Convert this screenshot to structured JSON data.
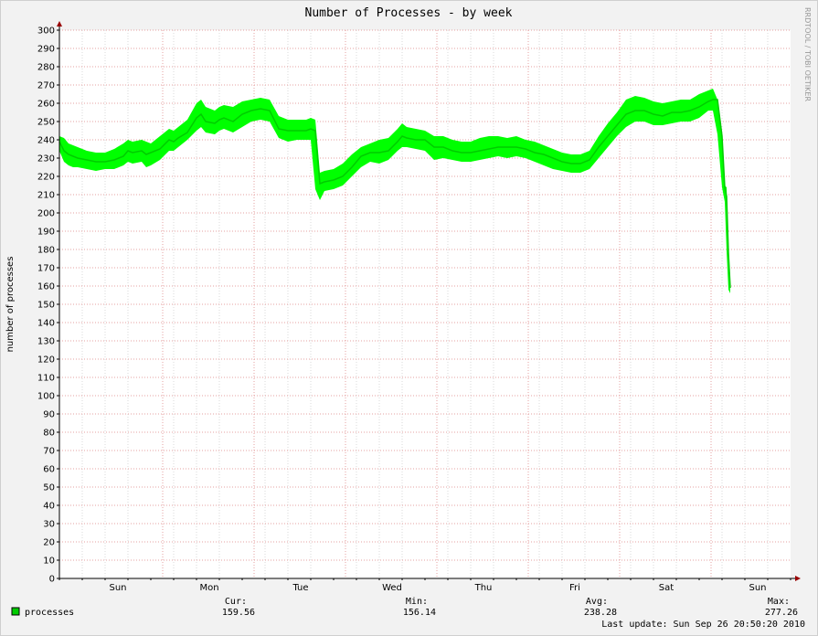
{
  "chart_data": {
    "type": "area",
    "title": "Number of Processes - by week",
    "ylabel": "number of processes",
    "watermark": "RRDTOOL / TOBI OETIKER",
    "ylim": [
      0,
      300
    ],
    "yticks": [
      0,
      10,
      20,
      30,
      40,
      50,
      60,
      70,
      80,
      90,
      100,
      110,
      120,
      130,
      140,
      150,
      160,
      170,
      180,
      190,
      200,
      210,
      220,
      230,
      240,
      250,
      260,
      270,
      280,
      290,
      300
    ],
    "ytick_labels": [
      "0",
      "10",
      "20",
      "30",
      "40",
      "50",
      "60",
      "70",
      "80",
      "90",
      "100",
      "110",
      "120",
      "130",
      "140",
      "150",
      "160",
      "170",
      "180",
      "190",
      "200",
      "210",
      "220",
      "230",
      "240",
      "250",
      "260",
      "270",
      "280",
      "290",
      "300"
    ],
    "day_labels": [
      "Sun",
      "Mon",
      "Tue",
      "Wed",
      "Thu",
      "Fri",
      "Sat",
      "Sun"
    ],
    "grid": true,
    "series": [
      {
        "name": "processes",
        "color": "#00cc00",
        "band_color": "#00ff00",
        "x": [
          0,
          0.05,
          0.1,
          0.15,
          0.2,
          0.3,
          0.4,
          0.5,
          0.6,
          0.7,
          0.75,
          0.8,
          0.9,
          0.95,
          1.0,
          1.1,
          1.2,
          1.25,
          1.3,
          1.4,
          1.5,
          1.55,
          1.6,
          1.7,
          1.75,
          1.8,
          1.9,
          2.0,
          2.1,
          2.2,
          2.3,
          2.4,
          2.5,
          2.6,
          2.7,
          2.75,
          2.8,
          2.85,
          2.9,
          3.0,
          3.1,
          3.2,
          3.3,
          3.4,
          3.5,
          3.6,
          3.7,
          3.75,
          3.8,
          3.9,
          4.0,
          4.1,
          4.2,
          4.3,
          4.4,
          4.5,
          4.6,
          4.7,
          4.8,
          4.9,
          5.0,
          5.1,
          5.2,
          5.3,
          5.4,
          5.5,
          5.6,
          5.7,
          5.8,
          5.9,
          6.0,
          6.1,
          6.2,
          6.3,
          6.4,
          6.5,
          6.6,
          6.7,
          6.8,
          6.9,
          7.0,
          7.1,
          7.15,
          7.2,
          7.25,
          7.28,
          7.3,
          7.32,
          7.34
        ],
        "values": [
          239,
          234,
          232,
          231,
          230,
          229,
          228,
          228,
          229,
          231,
          234,
          233,
          234,
          232,
          233,
          235,
          240,
          239,
          241,
          244,
          252,
          254,
          250,
          249,
          251,
          252,
          250,
          254,
          256,
          257,
          256,
          246,
          245,
          245,
          245,
          246,
          245,
          216,
          217,
          218,
          220,
          225,
          231,
          233,
          233,
          234,
          239,
          242,
          241,
          240,
          240,
          236,
          236,
          234,
          233,
          233,
          234,
          235,
          236,
          236,
          236,
          235,
          233,
          232,
          230,
          228,
          227,
          227,
          229,
          236,
          242,
          248,
          254,
          256,
          256,
          254,
          253,
          255,
          255,
          256,
          258,
          261,
          262,
          262,
          242,
          214,
          209,
          178,
          159
        ],
        "band_upper": [
          242,
          241,
          238,
          237,
          236,
          234,
          233,
          233,
          235,
          238,
          240,
          239,
          240,
          239,
          238,
          242,
          246,
          245,
          247,
          251,
          260,
          262,
          258,
          256,
          258,
          259,
          258,
          261,
          262,
          263,
          262,
          253,
          251,
          251,
          251,
          252,
          251,
          222,
          223,
          224,
          227,
          232,
          236,
          238,
          240,
          241,
          246,
          249,
          247,
          246,
          245,
          242,
          242,
          240,
          239,
          239,
          241,
          242,
          242,
          241,
          242,
          240,
          239,
          237,
          235,
          233,
          232,
          232,
          234,
          242,
          249,
          255,
          262,
          264,
          263,
          261,
          260,
          261,
          262,
          262,
          265,
          267,
          268,
          262,
          244,
          215,
          214,
          179,
          164
        ],
        "band_lower": [
          234,
          228,
          226,
          225,
          225,
          224,
          223,
          224,
          224,
          226,
          228,
          227,
          228,
          225,
          226,
          229,
          234,
          234,
          236,
          240,
          245,
          247,
          244,
          243,
          245,
          246,
          244,
          247,
          250,
          251,
          250,
          241,
          239,
          240,
          240,
          240,
          213,
          207,
          212,
          213,
          215,
          220,
          225,
          228,
          227,
          229,
          234,
          236,
          236,
          235,
          234,
          229,
          230,
          229,
          228,
          228,
          229,
          230,
          231,
          230,
          231,
          230,
          228,
          226,
          224,
          223,
          222,
          222,
          224,
          230,
          236,
          242,
          247,
          250,
          250,
          248,
          248,
          249,
          250,
          250,
          252,
          256,
          256,
          243,
          214,
          206,
          179,
          158,
          156
        ]
      }
    ]
  },
  "legend": {
    "series_name": "processes",
    "swatch_color": "#00cc00",
    "cur_label": "Cur:",
    "cur_value": "159.56",
    "min_label": "Min:",
    "min_value": "156.14",
    "avg_label": "Avg:",
    "avg_value": "238.28",
    "max_label": "Max:",
    "max_value": "277.26",
    "last_update": "Last update: Sun Sep 26 20:50:20 2010"
  }
}
